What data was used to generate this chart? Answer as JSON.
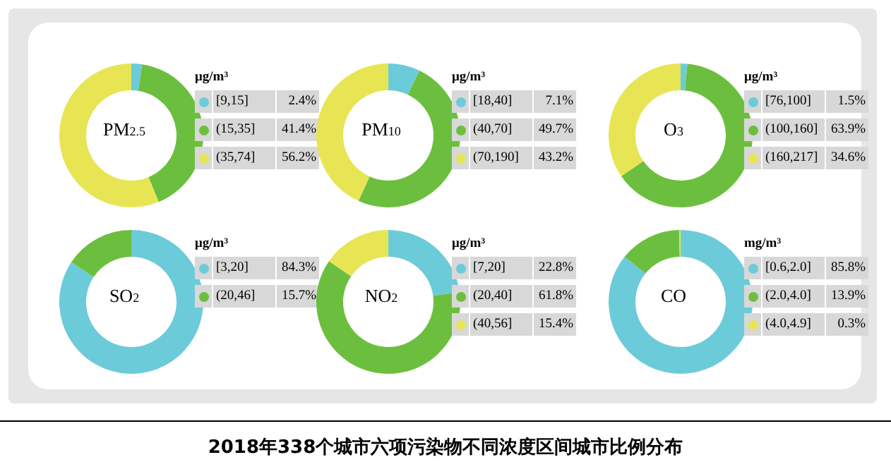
{
  "chart_data": [
    {
      "type": "donut",
      "title": "PM$_{2.5}$",
      "legend_title": "μg/m³",
      "legend": "right",
      "categories": [
        "[9,15]",
        "(15,35]",
        "(35,74]"
      ],
      "values": [
        2.4,
        41.4,
        56.2
      ],
      "value_labels": [
        "2.4%",
        "41.4%",
        "56.2%"
      ],
      "colors": [
        "#6ccbd9",
        "#6cbf3e",
        "#e8e555"
      ],
      "annotations": [
        "2018年338个城市六项污染物不同浓度区间城市比例分布"
      ]
    },
    {
      "type": "donut",
      "title": "PM$_{10}$",
      "legend_title": "μg/m³",
      "legend": "right",
      "categories": [
        "[18,40]",
        "(40,70]",
        "(70,190]"
      ],
      "values": [
        7.1,
        49.7,
        43.2
      ],
      "value_labels": [
        "7.1%",
        "49.7%",
        "43.2%"
      ],
      "colors": [
        "#6ccbd9",
        "#6cbf3e",
        "#e8e555"
      ]
    },
    {
      "type": "donut",
      "title": "O$_{3}$",
      "legend_title": "μg/m³",
      "legend": "right",
      "categories": [
        "[76,100]",
        "(100,160]",
        "(160,217]"
      ],
      "values": [
        1.5,
        63.9,
        34.6
      ],
      "value_labels": [
        "1.5%",
        "63.9%",
        "34.6%"
      ],
      "colors": [
        "#6ccbd9",
        "#6cbf3e",
        "#e8e555"
      ]
    },
    {
      "type": "donut",
      "title": "SO$_{2}$",
      "legend_title": "μg/m³",
      "legend": "right",
      "categories": [
        "[3,20]",
        "(20,46]"
      ],
      "values": [
        84.3,
        15.7
      ],
      "value_labels": [
        "84.3%",
        "15.7%"
      ],
      "colors": [
        "#6ccbd9",
        "#6cbf3e"
      ]
    },
    {
      "type": "donut",
      "title": "NO$_{2}$",
      "legend_title": "μg/m³",
      "legend": "right",
      "categories": [
        "[7,20]",
        "(20,40]",
        "(40,56]"
      ],
      "values": [
        22.8,
        61.8,
        15.4
      ],
      "value_labels": [
        "22.8%",
        "61.8%",
        "15.4%"
      ],
      "colors": [
        "#6ccbd9",
        "#6cbf3e",
        "#e8e555"
      ]
    },
    {
      "type": "donut",
      "title": "CO",
      "legend_title": "mg/m³",
      "legend": "right",
      "categories": [
        "[0.6,2.0]",
        "(2.0,4.0]",
        "(4.0,4.9]"
      ],
      "values": [
        85.8,
        13.9,
        0.3
      ],
      "value_labels": [
        "85.8%",
        "13.9%",
        "0.3%"
      ],
      "colors": [
        "#6ccbd9",
        "#6cbf3e",
        "#e8e555"
      ]
    }
  ]
}
